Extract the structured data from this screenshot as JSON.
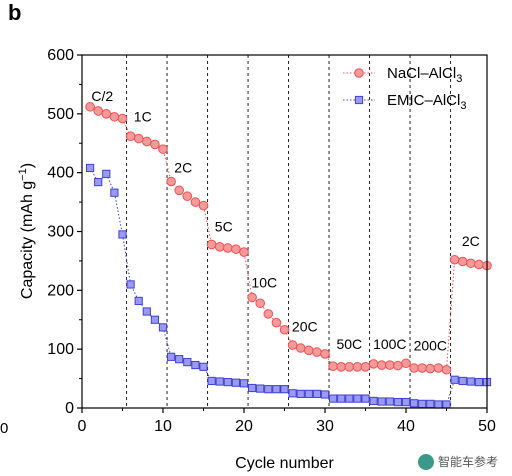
{
  "panel_label": "b",
  "watermark_text": "智能车参考",
  "stray_tick": "0",
  "chart_data": {
    "type": "scatter",
    "xlabel": "Cycle number",
    "ylabel": "Capacity (mAh g⁻¹)",
    "xlim": [
      0,
      50
    ],
    "ylim": [
      0,
      600
    ],
    "xticks": [
      0,
      10,
      20,
      30,
      40,
      50
    ],
    "yticks": [
      0,
      100,
      200,
      300,
      400,
      500,
      600
    ],
    "grid": false,
    "legend": "top-right",
    "dividers": [
      5.5,
      10.5,
      15.5,
      20.5,
      25.5,
      30.5,
      35.5,
      40.5,
      45.5
    ],
    "rate_labels": [
      {
        "text": "C/2",
        "x": 2.5,
        "y": 522
      },
      {
        "text": "1C",
        "x": 7.5,
        "y": 487
      },
      {
        "text": "2C",
        "x": 12.5,
        "y": 400
      },
      {
        "text": "5C",
        "x": 17.5,
        "y": 300
      },
      {
        "text": "10C",
        "x": 22.5,
        "y": 205
      },
      {
        "text": "20C",
        "x": 27.5,
        "y": 130
      },
      {
        "text": "50C",
        "x": 33,
        "y": 100
      },
      {
        "text": "100C",
        "x": 38,
        "y": 100
      },
      {
        "text": "200C",
        "x": 43,
        "y": 98
      },
      {
        "text": "2C",
        "x": 48,
        "y": 275
      }
    ],
    "series": [
      {
        "name": "NaCl–AlCl",
        "name_sub": "3",
        "color": "#f05050",
        "fill": "#f59a9a",
        "marker": "circle",
        "x": [
          1,
          2,
          3,
          4,
          5,
          6,
          7,
          8,
          9,
          10,
          11,
          12,
          13,
          14,
          15,
          16,
          17,
          18,
          19,
          20,
          21,
          22,
          23,
          24,
          25,
          26,
          27,
          28,
          29,
          30,
          31,
          32,
          33,
          34,
          35,
          36,
          37,
          38,
          39,
          40,
          41,
          42,
          43,
          44,
          45,
          46,
          47,
          48,
          49,
          50
        ],
        "y": [
          512,
          505,
          500,
          495,
          492,
          462,
          458,
          453,
          448,
          440,
          385,
          370,
          360,
          350,
          344,
          278,
          274,
          272,
          270,
          265,
          188,
          178,
          160,
          145,
          133,
          107,
          102,
          98,
          95,
          92,
          71,
          70,
          70,
          70,
          70,
          75,
          73,
          73,
          72,
          76,
          68,
          68,
          67,
          68,
          65,
          252,
          249,
          246,
          244,
          242
        ]
      },
      {
        "name": "EMIC–AlCl",
        "name_sub": "3",
        "color": "#4040d8",
        "fill": "#9a9af0",
        "marker": "square",
        "x": [
          1,
          2,
          3,
          4,
          5,
          6,
          7,
          8,
          9,
          10,
          11,
          12,
          13,
          14,
          15,
          16,
          17,
          18,
          19,
          20,
          21,
          22,
          23,
          24,
          25,
          26,
          27,
          28,
          29,
          30,
          31,
          32,
          33,
          34,
          35,
          36,
          37,
          38,
          39,
          40,
          41,
          42,
          43,
          44,
          45,
          46,
          47,
          48,
          49,
          50
        ],
        "y": [
          408,
          384,
          398,
          366,
          295,
          210,
          182,
          164,
          150,
          137,
          87,
          83,
          78,
          73,
          70,
          46,
          45,
          44,
          43,
          42,
          34,
          33,
          32,
          32,
          32,
          25,
          24,
          24,
          24,
          23,
          16,
          16,
          16,
          16,
          16,
          12,
          11,
          11,
          10,
          10,
          8,
          7,
          7,
          6,
          6,
          48,
          46,
          45,
          44,
          44
        ]
      }
    ]
  }
}
